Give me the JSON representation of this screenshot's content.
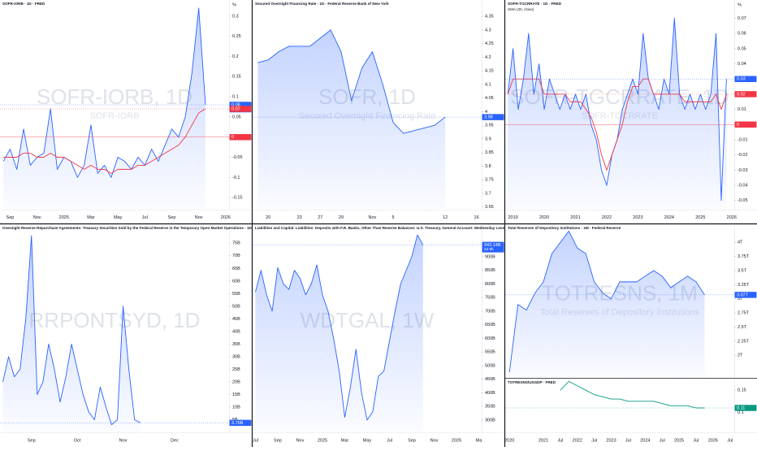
{
  "chart_data": [
    {
      "type": "area",
      "title": "SOFR-IORB · 1D · FRED",
      "watermark": "SOFR-IORB, 1D",
      "watermark_description": "SOFR-IORB",
      "axis_unit": "%",
      "color": "#2962ff",
      "categories": [
        null,
        "Sep",
        null,
        null,
        null,
        "Nov",
        null,
        null,
        null,
        "2025",
        null,
        null,
        null,
        "Mar",
        null,
        null,
        null,
        "May",
        null,
        null,
        null,
        "Jul",
        null,
        null,
        null,
        "Sep",
        null,
        null,
        null,
        "Nov",
        null,
        null,
        null,
        "2026"
      ],
      "values": [
        -0.06,
        -0.03,
        -0.08,
        0.02,
        -0.07,
        -0.05,
        -0.04,
        0.07,
        -0.08,
        -0.05,
        -0.06,
        -0.1,
        -0.07,
        0.03,
        -0.09,
        -0.07,
        -0.1,
        -0.05,
        -0.06,
        -0.08,
        -0.05,
        -0.07,
        -0.03,
        -0.06,
        -0.02,
        0.02,
        0.0,
        0.05,
        0.16,
        0.32,
        0.08,
        null,
        null,
        null
      ],
      "sma": {
        "color": "#f23645",
        "values": [
          -0.05,
          -0.05,
          -0.05,
          -0.04,
          -0.04,
          -0.05,
          -0.05,
          -0.04,
          -0.05,
          -0.05,
          -0.06,
          -0.07,
          -0.08,
          -0.07,
          -0.08,
          -0.08,
          -0.09,
          -0.08,
          -0.08,
          -0.08,
          -0.07,
          -0.07,
          -0.06,
          -0.05,
          -0.04,
          -0.03,
          -0.02,
          0.0,
          0.03,
          0.06,
          0.07,
          null,
          null,
          null
        ]
      },
      "ylim": [
        -0.18,
        0.34
      ],
      "yticks": [
        -0.15,
        -0.1,
        -0.05,
        0,
        0.05,
        0.1,
        0.15,
        0.2,
        0.25,
        0.3
      ],
      "markers": [
        {
          "value": 0.08,
          "color": "#2962ff",
          "countdown": "08:58:19"
        },
        {
          "value": 0.07,
          "color": "#f23645"
        },
        {
          "value": 0,
          "color": "#f23645"
        }
      ]
    },
    {
      "type": "area",
      "title": "Secured Overnight Financing Rate · 1D · Federal Reserve Bank of New York",
      "watermark": "SOFR, 1D",
      "watermark_description": "Secured Overnight Financing Rate",
      "color": "#2962ff",
      "categories": [
        null,
        "20",
        null,
        null,
        "23",
        null,
        "27",
        null,
        "29",
        null,
        null,
        "Nov",
        null,
        "5",
        null,
        null,
        null,
        null,
        "12",
        null,
        null,
        "16"
      ],
      "values": [
        4.18,
        4.19,
        4.22,
        4.24,
        4.24,
        4.24,
        4.27,
        4.3,
        4.22,
        4.04,
        4.16,
        4.22,
        4.1,
        3.96,
        3.92,
        3.93,
        3.94,
        3.95,
        3.98,
        null,
        null,
        null
      ],
      "ylim": [
        3.64,
        4.41
      ],
      "yticks": [
        3.65,
        3.7,
        3.75,
        3.8,
        3.85,
        3.9,
        3.95,
        4,
        4.05,
        4.1,
        4.15,
        4.2,
        4.25,
        4.3,
        4.35
      ],
      "markers": [
        {
          "value": 3.98,
          "color": "#2962ff"
        }
      ]
    },
    {
      "type": "area",
      "title": "SOFR-TGCRRATE · 1D · FRED",
      "watermark": "SOFR-TGCRRATE, 1D",
      "watermark_description": "SOFR-TGCRRATE",
      "axis_unit": "%",
      "color": "#2962ff",
      "categories": [
        null,
        "2019",
        null,
        null,
        null,
        null,
        null,
        "2020",
        null,
        null,
        null,
        null,
        null,
        "2021",
        null,
        null,
        null,
        null,
        null,
        "2022",
        null,
        null,
        null,
        null,
        null,
        "2023",
        null,
        null,
        null,
        null,
        null,
        "2024",
        null,
        null,
        null,
        null,
        null,
        "2025",
        null,
        null,
        null,
        null,
        null,
        "2026"
      ],
      "values": [
        0.02,
        0.05,
        0.01,
        0.03,
        0.06,
        0.02,
        0.04,
        0.01,
        0.03,
        0.02,
        0.01,
        0.02,
        0.01,
        0.02,
        0.01,
        0.02,
        0,
        -0.01,
        -0.03,
        -0.04,
        -0.02,
        -0.01,
        0.01,
        0.02,
        0.03,
        0.02,
        0.06,
        0.03,
        0.02,
        0.01,
        0.03,
        0.02,
        0.07,
        0.02,
        0.01,
        0.02,
        0.01,
        0.02,
        0.01,
        0.02,
        0.06,
        -0.05,
        0.03,
        null
      ],
      "sma": {
        "label": "SMA (30, close)",
        "color": "#f23645",
        "values": [
          0.02,
          0.03,
          0.03,
          0.03,
          0.03,
          0.03,
          0.03,
          0.02,
          0.02,
          0.02,
          0.02,
          0.02,
          0.015,
          0.015,
          0.015,
          0.01,
          0.005,
          -0.005,
          -0.02,
          -0.03,
          -0.02,
          -0.01,
          0,
          0.015,
          0.025,
          0.025,
          0.03,
          0.03,
          0.02,
          0.02,
          0.02,
          0.02,
          0.02,
          0.02,
          0.015,
          0.015,
          0.015,
          0.015,
          0.015,
          0.015,
          0.02,
          0.01,
          0.02,
          null
        ]
      },
      "ylim": [
        -0.056,
        0.082
      ],
      "yticks": [
        -0.05,
        -0.04,
        -0.03,
        -0.02,
        -0.01,
        0,
        0.01,
        0.02,
        0.03,
        0.04,
        0.05,
        0.06,
        0.07
      ],
      "markers": [
        {
          "value": 0.03,
          "color": "#2962ff"
        },
        {
          "value": 0.02,
          "color": "#f23645"
        },
        {
          "value": 0,
          "color": "#f23645"
        }
      ]
    },
    {
      "type": "area",
      "title": "Overnight Reverse Repurchase Agreements: Treasury Securities Sold by the Federal Reserve in the Temporary Open Market Operations · 1D · Federal Reserve Bank o",
      "watermark": "RRPONTSYD, 1D",
      "color": "#2962ff",
      "categories": [
        null,
        null,
        null,
        null,
        null,
        "Sep",
        null,
        null,
        null,
        null,
        null,
        null,
        null,
        "Oct",
        null,
        null,
        null,
        null,
        null,
        null,
        null,
        "Nov",
        null,
        null,
        null,
        null,
        null,
        null,
        null,
        null,
        "Dec",
        null,
        null,
        null,
        null,
        null,
        null,
        null,
        null,
        null
      ],
      "values": [
        20,
        30,
        22,
        25,
        45,
        78,
        15,
        20,
        35,
        25,
        12,
        22,
        35,
        25,
        15,
        8,
        5,
        18,
        10,
        3,
        5,
        50,
        25,
        5,
        3.76,
        null,
        null,
        null,
        null,
        null,
        null,
        null,
        null,
        null,
        null,
        null,
        null,
        null,
        null,
        null
      ],
      "ylim": [
        0,
        82.5
      ],
      "yticks": [
        {
          "value": 5,
          "label": "5B"
        },
        {
          "value": 10,
          "label": "10B"
        },
        {
          "value": 15,
          "label": "15B"
        },
        {
          "value": 20,
          "label": "20B"
        },
        {
          "value": 25,
          "label": "25B"
        },
        {
          "value": 30,
          "label": "30B"
        },
        {
          "value": 35,
          "label": "35B"
        },
        {
          "value": 40,
          "label": "40B"
        },
        {
          "value": 45,
          "label": "45B"
        },
        {
          "value": 50,
          "label": "50B"
        },
        {
          "value": 55,
          "label": "55B"
        },
        {
          "value": 60,
          "label": "60B"
        },
        {
          "value": 65,
          "label": "65B"
        },
        {
          "value": 70,
          "label": "70B"
        },
        {
          "value": 75,
          "label": "75B"
        }
      ],
      "markers": [
        {
          "value": 3.76,
          "label": "3.76B",
          "color": "#2962ff"
        }
      ]
    },
    {
      "type": "area",
      "title": "Liabilities and Capital: Liabilities: Deposits with F.R. Banks, Other Than Reserve Balances: U.S. Treasury, General Account: Wednesday Level · 1W · Federal Reserve",
      "watermark": "WDTGAL, 1W",
      "color": "#2962ff",
      "categories": [
        "Jul",
        null,
        null,
        null,
        "Sep",
        null,
        null,
        null,
        "Nov",
        null,
        null,
        null,
        "2025",
        null,
        null,
        null,
        "Mar",
        null,
        null,
        null,
        "May",
        null,
        null,
        null,
        "Jul",
        null,
        null,
        null,
        "Sep",
        null,
        null,
        null,
        "Nov",
        null,
        null,
        null,
        "2026",
        null,
        null,
        null,
        "Ma"
      ],
      "values": [
        770,
        850,
        760,
        700,
        860,
        800,
        780,
        850,
        820,
        760,
        800,
        870,
        760,
        700,
        600,
        480,
        310,
        420,
        560,
        400,
        300,
        330,
        460,
        480,
        590,
        700,
        800,
        850,
        900,
        980,
        943.14,
        null,
        null,
        null,
        null,
        null,
        null,
        null,
        null,
        null,
        null
      ],
      "ylim": [
        255,
        1019
      ],
      "yticks": [
        {
          "value": 300,
          "label": "300B"
        },
        {
          "value": 350,
          "label": "350B"
        },
        {
          "value": 400,
          "label": "400B"
        },
        {
          "value": 450,
          "label": "450B"
        },
        {
          "value": 500,
          "label": "500B"
        },
        {
          "value": 550,
          "label": "550B"
        },
        {
          "value": 600,
          "label": "600B"
        },
        {
          "value": 650,
          "label": "650B"
        },
        {
          "value": 700,
          "label": "700B"
        },
        {
          "value": 750,
          "label": "750B"
        },
        {
          "value": 800,
          "label": "800B"
        },
        {
          "value": 850,
          "label": "850B"
        },
        {
          "value": 900,
          "label": "900B"
        }
      ],
      "markers": [
        {
          "value": 943.14,
          "label": "943.14B",
          "color": "#2962ff",
          "countdown": "2d 9h"
        }
      ]
    },
    {
      "type": "area",
      "title": "Total Reserves of Depository Institutions · 1M · Federal Reserve",
      "watermark": "TOTRESNS, 1M",
      "watermark_description": "Total Reserves of Depository Institutions",
      "color": "#2962ff",
      "categories": [
        "2020",
        null,
        null,
        null,
        "2021",
        null,
        "Jul",
        null,
        "2022",
        null,
        "Jul",
        null,
        "2023",
        null,
        "Jul",
        null,
        "2024",
        null,
        "Jul",
        null,
        "2025",
        null,
        "Jul",
        null,
        "2026",
        null,
        "Jul"
      ],
      "values": [
        1.7,
        2.9,
        2.8,
        3.1,
        3.3,
        3.8,
        4.0,
        4.2,
        3.9,
        3.8,
        3.3,
        3.1,
        3.0,
        3.3,
        3.3,
        3.3,
        3.4,
        3.5,
        3.4,
        3.2,
        3.3,
        3.4,
        3.3,
        3.07,
        null,
        null,
        null
      ],
      "ylim": [
        1.6,
        4.32
      ],
      "yticks": [
        {
          "value": 2,
          "label": "2T"
        },
        {
          "value": 2.25,
          "label": "2.25T"
        },
        {
          "value": 2.5,
          "label": "2.5T"
        },
        {
          "value": 2.75,
          "label": "2.75T"
        },
        {
          "value": 3,
          "label": "3T"
        },
        {
          "value": 3.25,
          "label": "3.25T"
        },
        {
          "value": 3.5,
          "label": "3.5T"
        },
        {
          "value": 3.75,
          "label": "3.75T"
        },
        {
          "value": 4,
          "label": "4T"
        }
      ],
      "markers": [
        {
          "value": 3.07,
          "label": "3.07T",
          "color": "#2962ff"
        }
      ]
    },
    {
      "type": "line",
      "title": "TOTRESNS/USGDP · FRED",
      "color": "#089981",
      "values": [
        null,
        null,
        null,
        null,
        null,
        null,
        0.15,
        0.17,
        0.16,
        0.15,
        0.14,
        0.135,
        0.13,
        0.13,
        0.125,
        0.125,
        0.125,
        0.125,
        0.12,
        0.115,
        0.115,
        0.115,
        0.11,
        0.11,
        null,
        null,
        null
      ],
      "ylim": [
        0.055,
        0.176
      ],
      "yticks": [
        0.1,
        0.15
      ],
      "markers": [
        {
          "value": 0.11,
          "color": "#089981"
        }
      ]
    }
  ]
}
